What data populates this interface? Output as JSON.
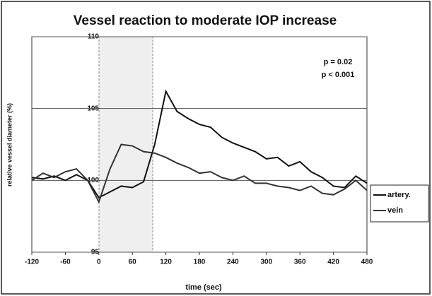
{
  "chart_data": {
    "type": "line",
    "title": "Vessel reaction to moderate IOP increase",
    "x_label": "time (sec)",
    "y_label": "relative vessel diameter (%)",
    "annotations": [
      "p = 0.02",
      "p < 0.001"
    ],
    "x": [
      -120,
      -100,
      -80,
      -60,
      -40,
      -20,
      0,
      20,
      40,
      60,
      80,
      100,
      120,
      140,
      160,
      180,
      200,
      220,
      240,
      260,
      280,
      300,
      320,
      340,
      360,
      380,
      400,
      420,
      440,
      460,
      480
    ],
    "series": [
      {
        "name": "artery.",
        "color": "#111111",
        "values": [
          100.2,
          100.1,
          100.3,
          100.0,
          100.4,
          100.0,
          98.8,
          99.2,
          99.6,
          99.5,
          99.9,
          102.5,
          106.2,
          104.8,
          104.3,
          103.9,
          103.7,
          103.0,
          102.6,
          102.3,
          102.0,
          101.5,
          101.6,
          101.0,
          101.3,
          100.6,
          100.2,
          99.6,
          99.5,
          100.3,
          99.8
        ]
      },
      {
        "name": "vein",
        "color": "#333333",
        "values": [
          100.0,
          100.5,
          100.2,
          100.6,
          100.8,
          100.0,
          98.5,
          100.8,
          102.5,
          102.4,
          102.0,
          101.9,
          101.6,
          101.2,
          100.9,
          100.5,
          100.6,
          100.2,
          100.0,
          100.3,
          99.8,
          99.8,
          99.6,
          99.5,
          99.3,
          99.6,
          99.1,
          99.0,
          99.4,
          100.0,
          99.3
        ]
      }
    ],
    "xlim": [
      -120,
      480
    ],
    "xticks": [
      -120,
      -60,
      0,
      60,
      120,
      180,
      240,
      300,
      360,
      420,
      480
    ],
    "ylim": [
      95,
      110
    ],
    "yticks": [
      95,
      100,
      105,
      110
    ],
    "grid": true,
    "legend": "right"
  }
}
